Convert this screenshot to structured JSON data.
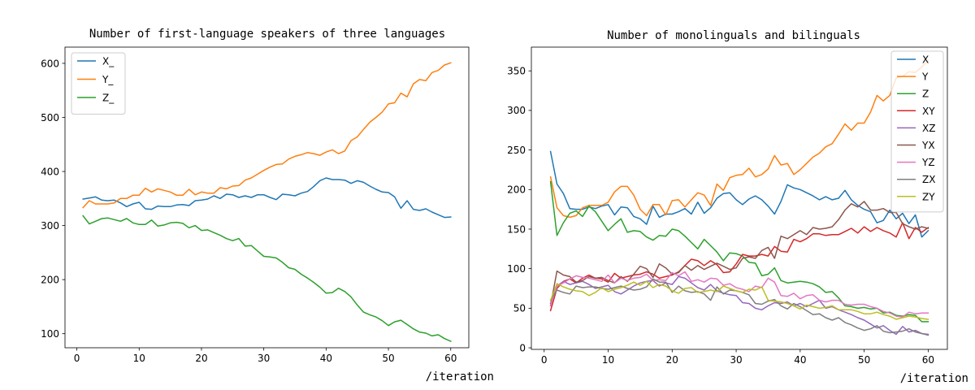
{
  "figure": {
    "width": 1200,
    "height": 480
  },
  "chart_data": [
    {
      "type": "line",
      "title": "Number of first-language speakers of three languages",
      "xlabel": "/iteration",
      "ylabel": "",
      "xlim": [
        -1.9,
        62.9
      ],
      "ylim": [
        74,
        630
      ],
      "xticks": [
        0,
        10,
        20,
        30,
        40,
        50,
        60
      ],
      "yticks": [
        100,
        200,
        300,
        400,
        500,
        600
      ],
      "xtick_labels": [
        "0",
        "10",
        "20",
        "30",
        "40",
        "50",
        "60"
      ],
      "ytick_labels": [
        "100",
        "200",
        "300",
        "400",
        "500",
        "600"
      ],
      "legend": "top-left",
      "x": [
        1,
        2,
        3,
        4,
        5,
        6,
        7,
        8,
        9,
        10,
        11,
        12,
        13,
        14,
        15,
        16,
        17,
        18,
        19,
        20,
        21,
        22,
        23,
        24,
        25,
        26,
        27,
        28,
        29,
        30,
        31,
        32,
        33,
        34,
        35,
        36,
        37,
        38,
        39,
        40,
        41,
        42,
        43,
        44,
        45,
        46,
        47,
        48,
        49,
        50,
        51,
        52,
        53,
        54,
        55,
        56,
        57,
        58,
        59,
        60
      ],
      "series": [
        {
          "name": "X_",
          "color": "#1f77b4",
          "values": [
            349,
            351,
            353,
            347,
            346,
            347,
            342,
            335,
            340,
            343,
            331,
            330,
            336,
            335,
            335,
            338,
            339,
            337,
            346,
            347,
            349,
            355,
            350,
            358,
            357,
            352,
            355,
            352,
            357,
            357,
            352,
            348,
            358,
            357,
            355,
            360,
            363,
            372,
            383,
            388,
            385,
            385,
            384,
            378,
            383,
            380,
            373,
            367,
            362,
            361,
            353,
            332,
            346,
            330,
            328,
            331,
            325,
            320,
            315,
            316
          ]
        },
        {
          "name": "Y_",
          "color": "#ff7f0e",
          "values": [
            333,
            346,
            340,
            340,
            340,
            342,
            350,
            350,
            356,
            356,
            369,
            362,
            368,
            365,
            362,
            356,
            356,
            367,
            357,
            362,
            360,
            360,
            370,
            368,
            373,
            374,
            384,
            388,
            395,
            402,
            408,
            413,
            414,
            423,
            428,
            431,
            435,
            433,
            430,
            436,
            440,
            433,
            438,
            457,
            464,
            478,
            491,
            500,
            510,
            525,
            527,
            545,
            538,
            562,
            570,
            568,
            583,
            587,
            597,
            601
          ]
        },
        {
          "name": "Z_",
          "color": "#2ca02c",
          "values": [
            318,
            303,
            308,
            313,
            314,
            311,
            308,
            313,
            305,
            302,
            302,
            310,
            299,
            301,
            305,
            306,
            304,
            296,
            300,
            291,
            292,
            287,
            282,
            276,
            272,
            276,
            262,
            263,
            253,
            243,
            242,
            240,
            232,
            222,
            219,
            210,
            203,
            195,
            186,
            175,
            176,
            184,
            178,
            168,
            153,
            140,
            135,
            131,
            124,
            115,
            122,
            125,
            117,
            109,
            103,
            101,
            96,
            98,
            91,
            86
          ]
        }
      ]
    },
    {
      "type": "line",
      "title": "Number of monolinguals and bilinguals",
      "xlabel": "/iteration",
      "ylabel": "",
      "xlim": [
        -2,
        63
      ],
      "ylim": [
        -2,
        380
      ],
      "xticks": [
        0,
        10,
        20,
        30,
        40,
        50,
        60
      ],
      "yticks": [
        0,
        50,
        100,
        150,
        200,
        250,
        300,
        350
      ],
      "xtick_labels": [
        "0",
        "10",
        "20",
        "30",
        "40",
        "50",
        "60"
      ],
      "ytick_labels": [
        "0",
        "50",
        "100",
        "150",
        "200",
        "250",
        "300",
        "350"
      ],
      "legend": "top-right",
      "x": [
        1,
        2,
        3,
        4,
        5,
        6,
        7,
        8,
        9,
        10,
        11,
        12,
        13,
        14,
        15,
        16,
        17,
        18,
        19,
        20,
        21,
        22,
        23,
        24,
        25,
        26,
        27,
        28,
        29,
        30,
        31,
        32,
        33,
        34,
        35,
        36,
        37,
        38,
        39,
        40,
        41,
        42,
        43,
        44,
        45,
        46,
        47,
        48,
        49,
        50,
        51,
        52,
        53,
        54,
        55,
        56,
        57,
        58,
        59,
        60
      ],
      "series": [
        {
          "name": "X",
          "color": "#1f77b4",
          "values": [
            248,
            207,
            195,
            176,
            175,
            175,
            178,
            176,
            179,
            181,
            168,
            178,
            177,
            166,
            163,
            156,
            179,
            165,
            169,
            169,
            172,
            176,
            169,
            184,
            170,
            177,
            189,
            195,
            196,
            187,
            181,
            188,
            192,
            187,
            179,
            169,
            185,
            206,
            202,
            200,
            196,
            192,
            187,
            191,
            187,
            189,
            199,
            187,
            180,
            175,
            172,
            158,
            161,
            174,
            163,
            170,
            157,
            168,
            140,
            148
          ]
        },
        {
          "name": "Y",
          "color": "#ff7f0e",
          "values": [
            216,
            177,
            167,
            165,
            167,
            177,
            180,
            180,
            180,
            184,
            197,
            204,
            204,
            193,
            175,
            167,
            181,
            181,
            168,
            186,
            187,
            178,
            187,
            196,
            193,
            180,
            207,
            199,
            215,
            218,
            219,
            227,
            216,
            219,
            226,
            243,
            231,
            233,
            219,
            225,
            233,
            241,
            246,
            254,
            258,
            270,
            283,
            275,
            284,
            284,
            298,
            319,
            312,
            319,
            341,
            343,
            349,
            348,
            355,
            363
          ]
        },
        {
          "name": "Z",
          "color": "#2ca02c",
          "values": [
            210,
            142,
            158,
            170,
            173,
            166,
            179,
            172,
            160,
            148,
            156,
            163,
            146,
            148,
            147,
            140,
            136,
            142,
            141,
            150,
            148,
            141,
            133,
            125,
            137,
            129,
            121,
            110,
            120,
            119,
            116,
            108,
            107,
            91,
            93,
            101,
            85,
            82,
            83,
            84,
            83,
            81,
            77,
            70,
            71,
            63,
            53,
            52,
            50,
            51,
            49,
            50,
            44,
            45,
            41,
            40,
            42,
            41,
            33,
            33
          ]
        },
        {
          "name": "XY",
          "color": "#d62728",
          "values": [
            47,
            75,
            84,
            87,
            82,
            88,
            92,
            88,
            87,
            83,
            94,
            88,
            90,
            92,
            93,
            96,
            93,
            88,
            90,
            92,
            96,
            104,
            112,
            110,
            104,
            110,
            105,
            95,
            96,
            106,
            118,
            116,
            116,
            118,
            116,
            128,
            122,
            121,
            137,
            134,
            138,
            144,
            144,
            142,
            143,
            143,
            147,
            151,
            145,
            153,
            147,
            152,
            148,
            145,
            140,
            158,
            138,
            152,
            146,
            152
          ]
        },
        {
          "name": "XZ",
          "color": "#9467bd",
          "values": [
            56,
            78,
            84,
            80,
            82,
            84,
            80,
            75,
            77,
            79,
            71,
            68,
            73,
            78,
            82,
            84,
            85,
            78,
            82,
            80,
            90,
            88,
            82,
            76,
            73,
            80,
            72,
            69,
            67,
            66,
            57,
            56,
            50,
            48,
            53,
            57,
            56,
            58,
            53,
            56,
            52,
            56,
            60,
            50,
            52,
            48,
            45,
            42,
            38,
            35,
            30,
            25,
            28,
            22,
            17,
            27,
            20,
            22,
            18,
            16
          ]
        },
        {
          "name": "YX",
          "color": "#8c564b",
          "values": [
            53,
            97,
            92,
            90,
            83,
            85,
            90,
            88,
            89,
            85,
            82,
            90,
            84,
            93,
            103,
            100,
            89,
            106,
            101,
            93,
            95,
            104,
            98,
            104,
            99,
            103,
            107,
            103,
            99,
            101,
            113,
            115,
            113,
            123,
            127,
            113,
            141,
            138,
            143,
            148,
            143,
            152,
            150,
            151,
            153,
            162,
            174,
            182,
            178,
            185,
            174,
            174,
            176,
            171,
            171,
            157,
            153,
            150,
            153,
            151
          ]
        },
        {
          "name": "YZ",
          "color": "#e377c2",
          "values": [
            53,
            78,
            82,
            87,
            91,
            89,
            88,
            86,
            84,
            92,
            82,
            88,
            85,
            88,
            89,
            93,
            85,
            86,
            85,
            95,
            91,
            96,
            84,
            86,
            83,
            88,
            87,
            79,
            81,
            76,
            74,
            71,
            78,
            76,
            88,
            83,
            66,
            65,
            69,
            62,
            66,
            67,
            60,
            58,
            60,
            60,
            55,
            54,
            55,
            55,
            52,
            50,
            46,
            44,
            40,
            39,
            45,
            43,
            44,
            44
          ]
        },
        {
          "name": "ZX",
          "color": "#7f7f7f",
          "values": [
            60,
            73,
            70,
            68,
            78,
            76,
            77,
            77,
            75,
            74,
            76,
            78,
            75,
            73,
            74,
            77,
            87,
            83,
            83,
            70,
            78,
            72,
            70,
            71,
            68,
            60,
            77,
            68,
            73,
            72,
            70,
            67,
            56,
            55,
            59,
            61,
            53,
            49,
            56,
            52,
            47,
            42,
            43,
            38,
            35,
            38,
            32,
            29,
            25,
            22,
            24,
            28,
            21,
            19,
            20,
            21,
            24,
            20,
            18,
            17
          ]
        },
        {
          "name": "ZY",
          "color": "#bcbd22",
          "values": [
            60,
            81,
            77,
            74,
            72,
            71,
            66,
            70,
            76,
            71,
            74,
            76,
            79,
            83,
            79,
            84,
            76,
            80,
            78,
            72,
            69,
            75,
            76,
            70,
            71,
            73,
            71,
            78,
            75,
            72,
            70,
            74,
            73,
            77,
            60,
            59,
            58,
            56,
            53,
            49,
            54,
            52,
            50,
            51,
            53,
            48,
            48,
            48,
            46,
            43,
            43,
            45,
            42,
            40,
            36,
            38,
            40,
            39,
            37,
            36
          ]
        }
      ]
    }
  ]
}
